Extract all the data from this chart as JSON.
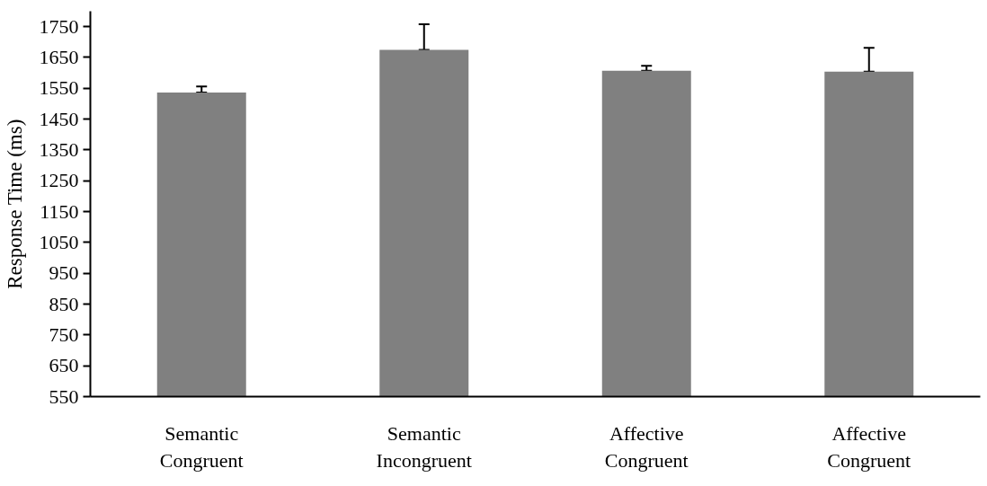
{
  "chart_data": {
    "type": "bar",
    "ylabel": "Response Time (ms)",
    "categories": [
      "Semantic\nCongruent",
      "Semantic\nIncongruent",
      "Affective\nCongruent",
      "Affective\nCongruent"
    ],
    "values": [
      1536,
      1675,
      1607,
      1604
    ],
    "errors": [
      [
        1536,
        1556
      ],
      [
        1675,
        1758
      ],
      [
        1607,
        1623
      ],
      [
        1604,
        1681
      ]
    ],
    "color": "#808080",
    "ylim": [
      550,
      1800
    ],
    "yticks": [
      550,
      650,
      750,
      850,
      950,
      1050,
      1150,
      1250,
      1350,
      1450,
      1550,
      1650,
      1750
    ],
    "grid": false
  }
}
